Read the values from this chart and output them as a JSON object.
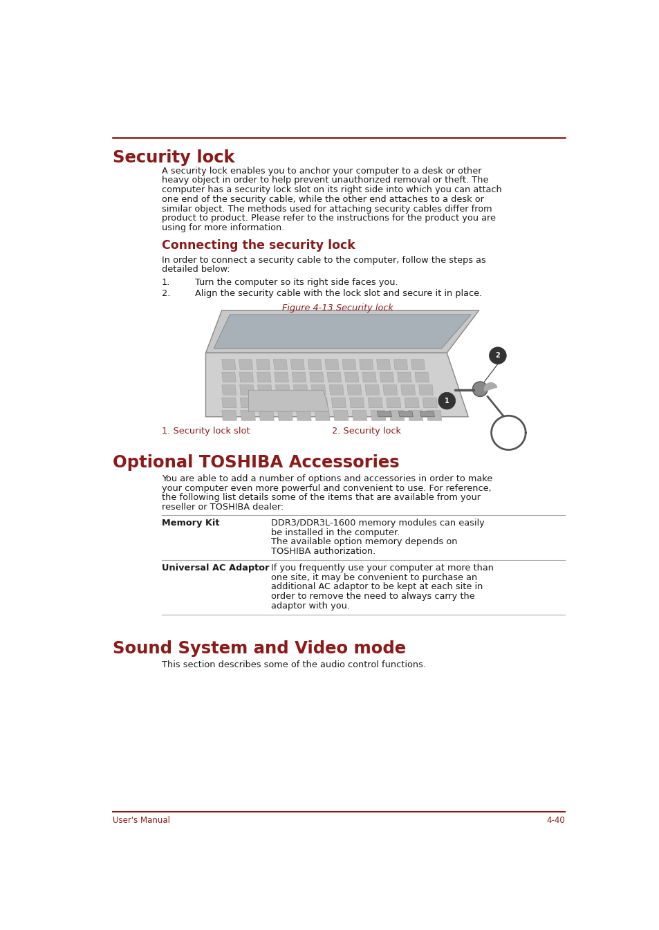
{
  "bg_color": "#ffffff",
  "accent_color": "#8B1A1A",
  "text_color": "#1a1a1a",
  "top_rule_color": "#8B1A1A",
  "section_rule_color": "#aaaaaa",
  "footer_rule_color": "#8B1A1A",
  "h1_security_lock": "Security lock",
  "h1_optional": "Optional TOSHIBA Accessories",
  "h1_sound": "Sound System and Video mode",
  "h2_connecting": "Connecting the security lock",
  "para_security_lines": [
    "A security lock enables you to anchor your computer to a desk or other",
    "heavy object in order to help prevent unauthorized removal or theft. The",
    "computer has a security lock slot on its right side into which you can attach",
    "one end of the security cable, while the other end attaches to a desk or",
    "similar object. The methods used for attaching security cables differ from",
    "product to product. Please refer to the instructions for the product you are",
    "using for more information."
  ],
  "para_connecting_lines": [
    "In order to connect a security cable to the computer, follow the steps as",
    "detailed below:"
  ],
  "step1": "Turn the computer so its right side faces you.",
  "step2": "Align the security cable with the lock slot and secure it in place.",
  "figure_caption": "Figure 4-13 Security lock",
  "label1": "1. Security lock slot",
  "label2": "2. Security lock",
  "opt_lines": [
    "You are able to add a number of options and accessories in order to make",
    "your computer even more powerful and convenient to use. For reference,",
    "the following list details some of the items that are available from your",
    "reseller or TOSHIBA dealer:"
  ],
  "mk_lines": [
    "DDR3/DDR3L-1600 memory modules can easily",
    "be installed in the computer.",
    "The available option memory depends on",
    "TOSHIBA authorization."
  ],
  "ac_lines": [
    "If you frequently use your computer at more than",
    "one site, it may be convenient to purchase an",
    "additional AC adaptor to be kept at each site in",
    "order to remove the need to always carry the",
    "adaptor with you."
  ],
  "para_sound": "This section describes some of the audio control functions.",
  "footer_left": "User's Manual",
  "footer_right": "4-40",
  "page_width": 9.54,
  "page_height": 13.45,
  "dpi": 100
}
